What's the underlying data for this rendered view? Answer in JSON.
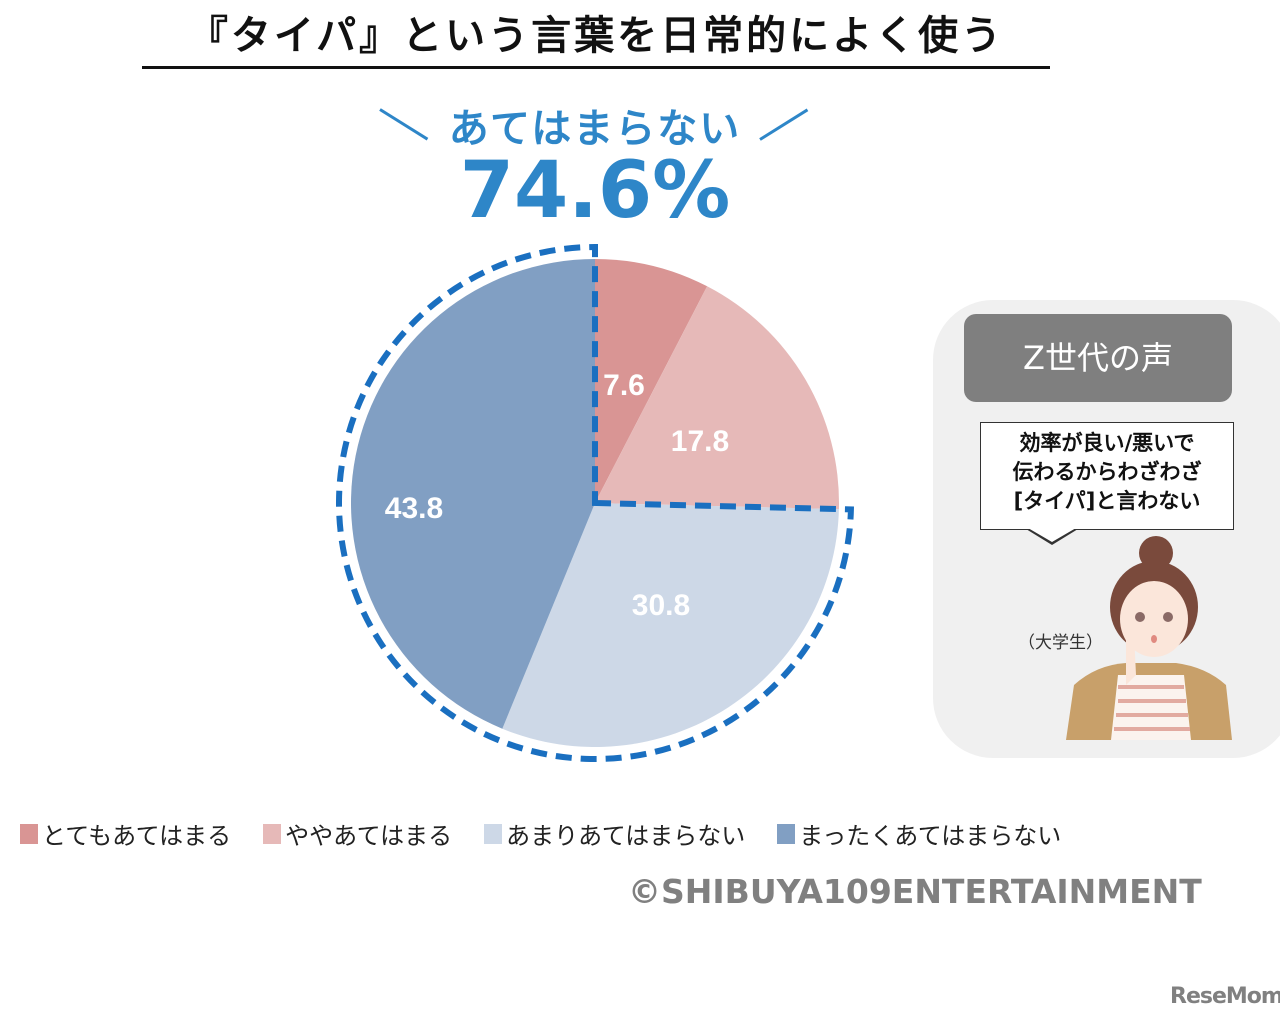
{
  "title": "『タイパ』という言葉を日常的によく使う",
  "highlight": {
    "label": "あてはまらない",
    "value": "74.6%",
    "color": "#2e86c8"
  },
  "chart_data": {
    "type": "pie",
    "title": "『タイパ』という言葉を日常的によく使う",
    "start": "top",
    "direction": "clockwise",
    "categories": [
      "とてもあてはまる",
      "ややあてはまる",
      "あまりあてはまらない",
      "まったくあてはまらない"
    ],
    "values": [
      7.6,
      17.8,
      30.8,
      43.8
    ],
    "data_labels": [
      "7.6",
      "17.8",
      "30.8",
      "43.8"
    ],
    "colors": [
      "#d99594",
      "#e6b9b8",
      "#cdd8e7",
      "#819fc3"
    ],
    "highlighted_group": [
      "あまりあてはまらない",
      "まったくあてはまらない"
    ],
    "highlight_outline_color": "#1a6fc0",
    "legend_position": "bottom"
  },
  "voice": {
    "heading": "Z世代の声",
    "quote_lines": [
      "効率が良い/悪いで",
      "伝わるからわざわざ",
      "[タイパ]と言わない"
    ],
    "speaker": "（大学生）"
  },
  "credit": "©SHIBUYA109ENTERTAINMENT",
  "logo": "ReseMom"
}
